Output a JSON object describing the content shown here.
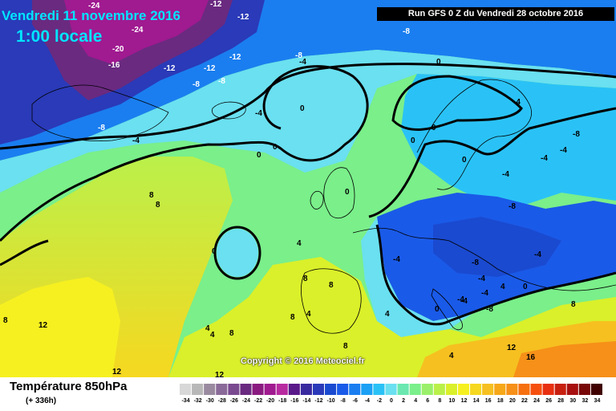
{
  "header": {
    "date": "Vendredi 11 novembre 2016",
    "local_time": "1:00 locale",
    "run": "Run GFS 0 Z du Vendredi 28 octobre 2016"
  },
  "copyright": "Copyright © 2016 Meteociel.fr",
  "legend": {
    "variable": "Température 850hPa",
    "lead_time": "(+ 336h)",
    "scale_ticks": [
      "-34",
      "-32",
      "-30",
      "-28",
      "-26",
      "-24",
      "-22",
      "-20",
      "-18",
      "-16",
      "-14",
      "-12",
      "-10",
      "-8",
      "-6",
      "-4",
      "-2",
      "0",
      "2",
      "4",
      "6",
      "8",
      "10",
      "12",
      "14",
      "16",
      "18",
      "20",
      "22",
      "24",
      "26",
      "28",
      "30",
      "32",
      "34"
    ],
    "scale_colors": [
      "#d8d8d8",
      "#b8b8b8",
      "#9a8aa0",
      "#8a6a98",
      "#7a4a90",
      "#6a2a80",
      "#8a1a80",
      "#a01a90",
      "#b82aa0",
      "#5a1a8a",
      "#3a2aa0",
      "#2a3ab8",
      "#1a4ad0",
      "#1a5ae8",
      "#1a7ef0",
      "#1aa0f4",
      "#2ac2f6",
      "#6ae0f0",
      "#6ae8b0",
      "#7aef8a",
      "#9af06a",
      "#baf04a",
      "#daf02a",
      "#f6f020",
      "#f6d820",
      "#f6c020",
      "#f6a818",
      "#f69018",
      "#f67010",
      "#f65010",
      "#e83010",
      "#c82010",
      "#a81010",
      "#780808",
      "#400000"
    ]
  },
  "contour_labels": [
    {
      "text": "-24",
      "white": true
    },
    {
      "text": "-12",
      "white": true
    },
    {
      "text": "-12",
      "white": true
    },
    {
      "text": "-24",
      "white": true
    },
    {
      "text": "-20",
      "white": true
    },
    {
      "text": "-16",
      "white": true
    },
    {
      "text": "-12",
      "white": true
    },
    {
      "text": "-12",
      "white": true
    },
    {
      "text": "-12",
      "white": true
    },
    {
      "text": "-8",
      "white": true
    },
    {
      "text": "-8",
      "white": true
    },
    {
      "text": "-8",
      "white": true
    },
    {
      "text": "-8",
      "white": true
    },
    {
      "text": "-8",
      "white": true
    },
    {
      "text": "-4",
      "white": false
    },
    {
      "text": "-4",
      "white": false
    },
    {
      "text": "0",
      "white": false
    },
    {
      "text": "0",
      "white": false
    },
    {
      "text": "-4",
      "white": false
    },
    {
      "text": "0",
      "white": false
    },
    {
      "text": "0",
      "white": false
    },
    {
      "text": "0",
      "white": false
    },
    {
      "text": "0",
      "white": false
    },
    {
      "text": "0",
      "white": false
    },
    {
      "text": "0",
      "white": false
    },
    {
      "text": "-4",
      "white": false
    },
    {
      "text": "8",
      "white": false
    },
    {
      "text": "8",
      "white": false
    },
    {
      "text": "4",
      "white": false
    },
    {
      "text": "4",
      "white": false
    },
    {
      "text": "0",
      "white": false
    },
    {
      "text": "8",
      "white": false
    },
    {
      "text": "8",
      "white": false
    },
    {
      "text": "4",
      "white": false
    },
    {
      "text": "8",
      "white": false
    },
    {
      "text": "12",
      "white": false
    },
    {
      "text": "12",
      "white": false
    },
    {
      "text": "12",
      "white": false
    },
    {
      "text": "8",
      "white": false
    },
    {
      "text": "8",
      "white": false
    },
    {
      "text": "-4",
      "white": false
    },
    {
      "text": "-8",
      "white": false
    },
    {
      "text": "-8",
      "white": false
    },
    {
      "text": "-4",
      "white": false
    },
    {
      "text": "-4",
      "white": false
    },
    {
      "text": "-4",
      "white": false
    },
    {
      "text": "-4",
      "white": false
    },
    {
      "text": "-8",
      "white": false
    },
    {
      "text": "-4",
      "white": false
    },
    {
      "text": "-4",
      "white": false
    },
    {
      "text": "4",
      "white": false
    },
    {
      "text": "4",
      "white": false
    },
    {
      "text": "8",
      "white": false
    },
    {
      "text": "12",
      "white": false
    },
    {
      "text": "16",
      "white": false
    },
    {
      "text": "4",
      "white": false
    },
    {
      "text": "0",
      "white": false
    },
    {
      "text": "-4",
      "white": false
    },
    {
      "text": "-8",
      "white": false
    },
    {
      "text": "-4",
      "white": false
    },
    {
      "text": "0",
      "white": false
    },
    {
      "text": "8",
      "white": false
    },
    {
      "text": "4",
      "white": false
    }
  ]
}
